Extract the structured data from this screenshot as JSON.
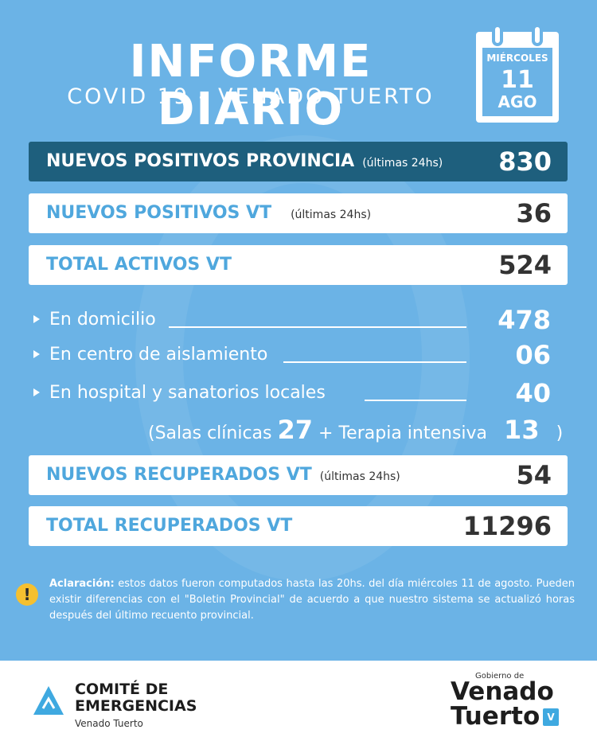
{
  "header": {
    "title": "INFORME DIARIO",
    "subtitle": "COVID 19 - VENADO TUERTO",
    "calendar": {
      "weekday": "MIÉRCOLES",
      "day": "11",
      "month": "AGO"
    }
  },
  "bars": {
    "provincia": {
      "label": "NUEVOS POSITIVOS PROVINCIA",
      "note": "(últimas 24hs)",
      "value": "830"
    },
    "positivos_vt": {
      "label": "NUEVOS POSITIVOS VT",
      "note": "(últimas 24hs)",
      "value": "36"
    },
    "activos_vt": {
      "label": "TOTAL ACTIVOS VT",
      "value": "524"
    },
    "recuperados_vt": {
      "label": "NUEVOS RECUPERADOS VT",
      "note": "(últimas 24hs)",
      "value": "54"
    },
    "total_recuperados": {
      "label": "TOTAL RECUPERADOS VT",
      "value": "11296"
    }
  },
  "details": {
    "domicilio": {
      "label": "En domicilio",
      "value": "478"
    },
    "aislamiento": {
      "label": "En centro de aislamiento",
      "value": "06"
    },
    "hospital": {
      "label": "En hospital y sanatorios locales",
      "value": "40"
    }
  },
  "breakdown": {
    "open": "(",
    "salas_label": "Salas clínicas",
    "salas_value": "27",
    "plus": "+",
    "terapia_label": "Terapia intensiva",
    "terapia_value": "13",
    "close": ")"
  },
  "note": {
    "icon": "warning-icon",
    "bold": "Aclaración:",
    "text": "estos datos fueron computados hasta las 20hs. del día miércoles 11 de agosto. Pueden existir diferencias con el \"Boletin Provincial\" de acuerdo a que nuestro sistema se actualizó horas después del último recuento provincial."
  },
  "footer": {
    "comite_line1": "COMITÉ DE",
    "comite_line2": "EMERGENCIAS",
    "comite_sub": "Venado Tuerto",
    "gob_small": "Gobierno de",
    "gob_line1": "Venado",
    "gob_line2": "Tuerto",
    "gob_icon_text": "V"
  },
  "colors": {
    "background": "#6bb3e6",
    "dark_bar": "#1e5f7d",
    "accent_text": "#4fa7dd",
    "warning": "#f5c030"
  }
}
